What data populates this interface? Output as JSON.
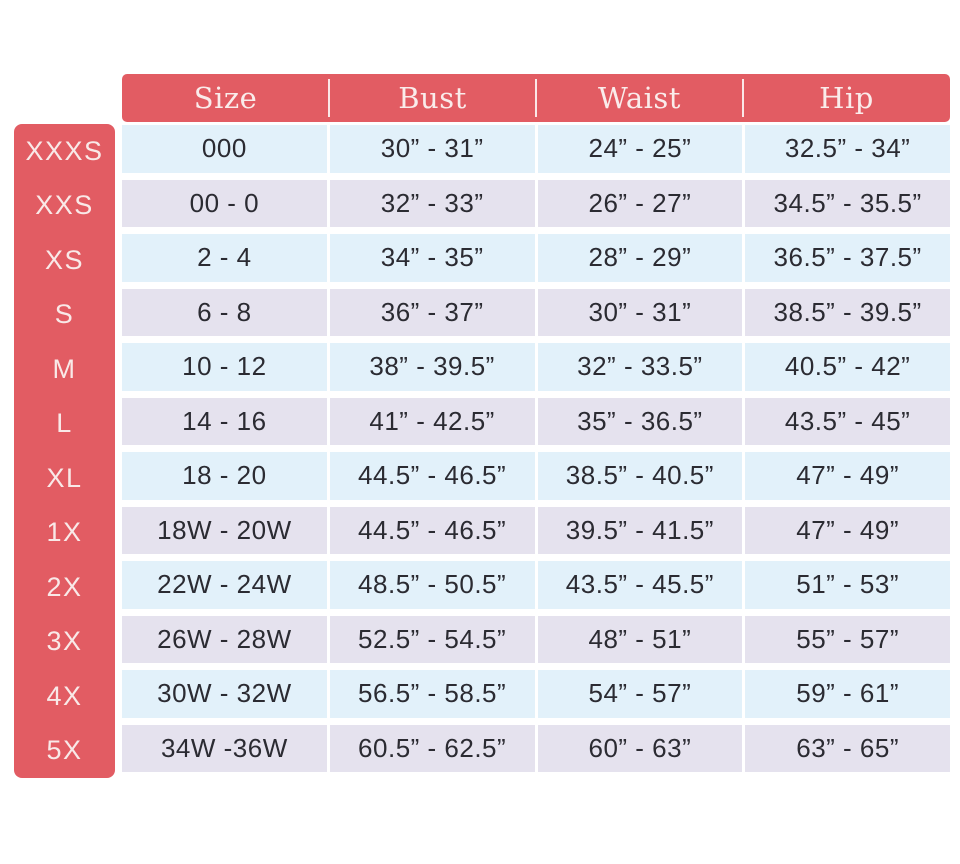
{
  "chart_data": {
    "type": "table",
    "columns": [
      "Size",
      "Bust",
      "Waist",
      "Hip"
    ],
    "rows": [
      {
        "label": "XXXS",
        "cells": [
          "000",
          "30” - 31”",
          "24” - 25”",
          "32.5” - 34”"
        ]
      },
      {
        "label": "XXS",
        "cells": [
          "00 - 0",
          "32” - 33”",
          "26” - 27”",
          "34.5” - 35.5”"
        ]
      },
      {
        "label": "XS",
        "cells": [
          "2 - 4",
          "34” - 35”",
          "28” - 29”",
          "36.5” - 37.5”"
        ]
      },
      {
        "label": "S",
        "cells": [
          "6 - 8",
          "36” - 37”",
          "30” - 31”",
          "38.5” - 39.5”"
        ]
      },
      {
        "label": "M",
        "cells": [
          "10 - 12",
          "38” - 39.5”",
          "32” - 33.5”",
          "40.5” - 42”"
        ]
      },
      {
        "label": "L",
        "cells": [
          "14 - 16",
          "41” - 42.5”",
          "35” - 36.5”",
          "43.5” - 45”"
        ]
      },
      {
        "label": "XL",
        "cells": [
          "18 - 20",
          "44.5” - 46.5”",
          "38.5” - 40.5”",
          "47” - 49”"
        ]
      },
      {
        "label": "1X",
        "cells": [
          "18W - 20W",
          "44.5” - 46.5”",
          "39.5” - 41.5”",
          "47” - 49”"
        ]
      },
      {
        "label": "2X",
        "cells": [
          "22W - 24W",
          "48.5” - 50.5”",
          "43.5” - 45.5”",
          "51” - 53”"
        ]
      },
      {
        "label": "3X",
        "cells": [
          "26W - 28W",
          "52.5” - 54.5”",
          "48” - 51”",
          "55” - 57”"
        ]
      },
      {
        "label": "4X",
        "cells": [
          "30W - 32W",
          "56.5” - 58.5”",
          "54” - 57”",
          "59” - 61”"
        ]
      },
      {
        "label": "5X",
        "cells": [
          "34W -36W",
          "60.5” - 62.5”",
          "60” - 63”",
          "63” - 65”"
        ]
      }
    ],
    "layout": {
      "grid": "off",
      "row_striping": [
        "light-blue",
        "lavender"
      ],
      "header_position": "top",
      "size_labels_position": "left"
    }
  },
  "colors": {
    "accent": "#E25C63",
    "header_text": "#FAECEB",
    "sidebar_text": "#F9E9E8",
    "row_blue": "#E2F1FA",
    "row_lavender": "#E5E2EE",
    "cell_text": "#2B2B32",
    "background": "#FFFFFF"
  }
}
